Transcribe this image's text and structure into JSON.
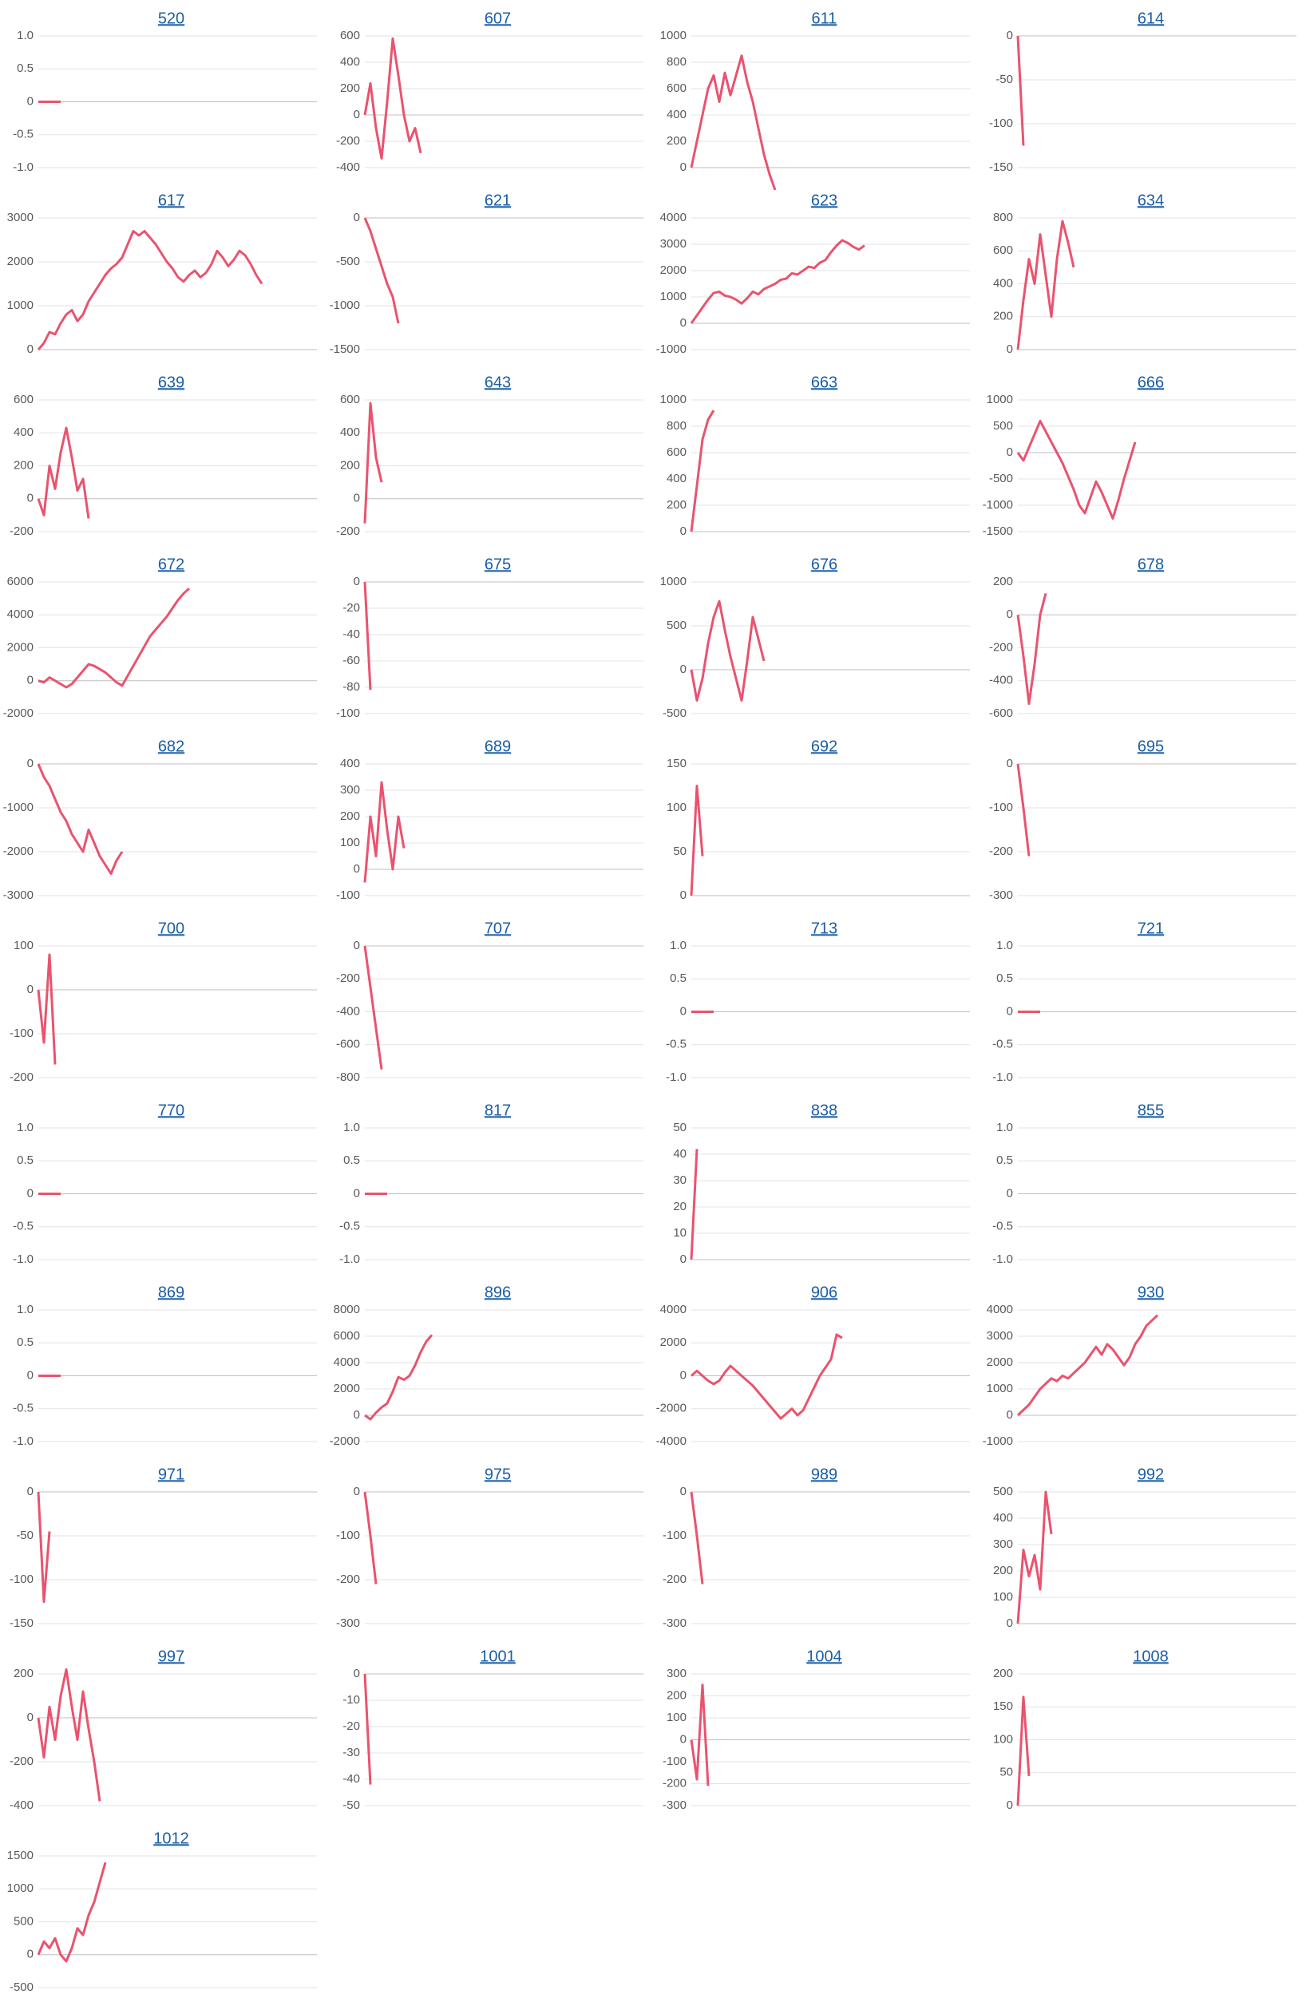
{
  "chart_data": [
    {
      "type": "line",
      "title": "520",
      "color": "#e9536f",
      "ylim": [
        -1,
        1
      ],
      "yticks": [
        {
          "value": 1,
          "label": "1.0"
        },
        0.5,
        0,
        -0.5,
        {
          "value": -1,
          "label": "-1.0"
        }
      ],
      "values": [
        0,
        0,
        0,
        0,
        0
      ]
    },
    {
      "type": "line",
      "title": "607",
      "color": "#e9536f",
      "ylim": [
        -400,
        600
      ],
      "yticks": [
        600,
        400,
        200,
        0,
        -200,
        -400
      ],
      "values": [
        0,
        240,
        -100,
        -330,
        100,
        580,
        300,
        0,
        -200,
        -100,
        -290
      ]
    },
    {
      "type": "line",
      "title": "611",
      "color": "#e9536f",
      "ylim": [
        0,
        1000
      ],
      "yticks": [
        1000,
        800,
        600,
        400,
        200,
        0
      ],
      "values": [
        0,
        200,
        400,
        600,
        700,
        500,
        720,
        550,
        700,
        850,
        650,
        500,
        300,
        100,
        -50,
        -170
      ]
    },
    {
      "type": "line",
      "title": "614",
      "color": "#e9536f",
      "ylim": [
        -150,
        0
      ],
      "yticks": [
        0,
        -50,
        -100,
        -150
      ],
      "values": [
        0,
        -125
      ]
    },
    {
      "type": "line",
      "title": "617",
      "color": "#e9536f",
      "ylim": [
        0,
        3000
      ],
      "yticks": [
        3000,
        2000,
        1000,
        0
      ],
      "values": [
        0,
        150,
        400,
        350,
        600,
        800,
        900,
        650,
        800,
        1100,
        1300,
        1500,
        1700,
        1850,
        1950,
        2100,
        2400,
        2700,
        2600,
        2700,
        2550,
        2400,
        2200,
        2000,
        1850,
        1650,
        1550,
        1700,
        1800,
        1650,
        1750,
        1950,
        2250,
        2100,
        1900,
        2050,
        2250,
        2150,
        1950,
        1700,
        1500
      ]
    },
    {
      "type": "line",
      "title": "621",
      "color": "#e9536f",
      "ylim": [
        -1500,
        0
      ],
      "yticks": [
        0,
        -500,
        -1000,
        -1500
      ],
      "values": [
        0,
        -150,
        -350,
        -550,
        -750,
        -900,
        -1200
      ]
    },
    {
      "type": "line",
      "title": "623",
      "color": "#e9536f",
      "ylim": [
        -1000,
        4000
      ],
      "yticks": [
        4000,
        3000,
        2000,
        1000,
        0,
        -1000
      ],
      "values": [
        0,
        300,
        600,
        900,
        1150,
        1200,
        1050,
        1000,
        900,
        750,
        950,
        1200,
        1100,
        1300,
        1400,
        1500,
        1650,
        1700,
        1900,
        1850,
        2000,
        2150,
        2100,
        2300,
        2400,
        2700,
        2950,
        3150,
        3050,
        2900,
        2800,
        2950
      ]
    },
    {
      "type": "line",
      "title": "634",
      "color": "#e9536f",
      "ylim": [
        0,
        800
      ],
      "yticks": [
        800,
        600,
        400,
        200,
        0
      ],
      "values": [
        0,
        300,
        550,
        400,
        700,
        450,
        200,
        550,
        780,
        650,
        500
      ]
    },
    {
      "type": "line",
      "title": "639",
      "color": "#e9536f",
      "ylim": [
        -200,
        600
      ],
      "yticks": [
        600,
        400,
        200,
        0,
        -200
      ],
      "values": [
        0,
        -100,
        200,
        60,
        280,
        430,
        250,
        50,
        120,
        -120
      ]
    },
    {
      "type": "line",
      "title": "643",
      "color": "#e9536f",
      "ylim": [
        -200,
        600
      ],
      "yticks": [
        600,
        400,
        200,
        0,
        -200
      ],
      "values": [
        -150,
        580,
        250,
        100
      ]
    },
    {
      "type": "line",
      "title": "663",
      "color": "#e9536f",
      "ylim": [
        0,
        1000
      ],
      "yticks": [
        1000,
        800,
        600,
        400,
        200,
        0
      ],
      "values": [
        0,
        350,
        700,
        850,
        920
      ]
    },
    {
      "type": "line",
      "title": "666",
      "color": "#e9536f",
      "ylim": [
        -1500,
        1000
      ],
      "yticks": [
        1000,
        500,
        0,
        -500,
        -1000,
        -1500
      ],
      "values": [
        0,
        -150,
        100,
        350,
        600,
        400,
        200,
        0,
        -200,
        -450,
        -700,
        -1000,
        -1150,
        -850,
        -550,
        -750,
        -1000,
        -1250,
        -900,
        -500,
        -150,
        200
      ]
    },
    {
      "type": "line",
      "title": "672",
      "color": "#e9536f",
      "ylim": [
        -2000,
        6000
      ],
      "yticks": [
        6000,
        4000,
        2000,
        0,
        -2000
      ],
      "values": [
        0,
        -100,
        200,
        0,
        -200,
        -400,
        -200,
        200,
        600,
        1000,
        900,
        700,
        500,
        200,
        -100,
        -300,
        300,
        900,
        1500,
        2100,
        2700,
        3100,
        3500,
        3900,
        4400,
        4900,
        5300,
        5600
      ]
    },
    {
      "type": "line",
      "title": "675",
      "color": "#e9536f",
      "ylim": [
        -100,
        0
      ],
      "yticks": [
        0,
        -20,
        -40,
        -60,
        -80,
        -100
      ],
      "values": [
        0,
        -82
      ]
    },
    {
      "type": "line",
      "title": "676",
      "color": "#e9536f",
      "ylim": [
        -500,
        1000
      ],
      "yticks": [
        1000,
        500,
        0,
        -500
      ],
      "values": [
        0,
        -350,
        -100,
        300,
        600,
        780,
        450,
        150,
        -100,
        -350,
        100,
        600,
        350,
        100
      ]
    },
    {
      "type": "line",
      "title": "678",
      "color": "#e9536f",
      "ylim": [
        -600,
        200
      ],
      "yticks": [
        200,
        0,
        -200,
        -400,
        -600
      ],
      "values": [
        0,
        -250,
        -540,
        -300,
        0,
        130
      ]
    },
    {
      "type": "line",
      "title": "682",
      "color": "#e9536f",
      "ylim": [
        -3000,
        0
      ],
      "yticks": [
        0,
        -1000,
        -2000,
        -3000
      ],
      "values": [
        0,
        -300,
        -500,
        -800,
        -1100,
        -1300,
        -1600,
        -1800,
        -2000,
        -1500,
        -1800,
        -2100,
        -2300,
        -2500,
        -2200,
        -2000
      ]
    },
    {
      "type": "line",
      "title": "689",
      "color": "#e9536f",
      "ylim": [
        -100,
        400
      ],
      "yticks": [
        400,
        300,
        200,
        100,
        0,
        -100
      ],
      "values": [
        -50,
        200,
        50,
        330,
        150,
        0,
        200,
        80
      ]
    },
    {
      "type": "line",
      "title": "692",
      "color": "#e9536f",
      "ylim": [
        0,
        150
      ],
      "yticks": [
        150,
        100,
        50,
        0
      ],
      "values": [
        0,
        125,
        45
      ]
    },
    {
      "type": "line",
      "title": "695",
      "color": "#e9536f",
      "ylim": [
        -300,
        0
      ],
      "yticks": [
        0,
        -100,
        -200,
        -300
      ],
      "values": [
        0,
        -100,
        -210
      ]
    },
    {
      "type": "line",
      "title": "700",
      "color": "#e9536f",
      "ylim": [
        -200,
        100
      ],
      "yticks": [
        100,
        0,
        -100,
        -200
      ],
      "values": [
        0,
        -120,
        80,
        -170
      ]
    },
    {
      "type": "line",
      "title": "707",
      "color": "#e9536f",
      "ylim": [
        -800,
        0
      ],
      "yticks": [
        0,
        -200,
        -400,
        -600,
        -800
      ],
      "values": [
        0,
        -250,
        -500,
        -750
      ]
    },
    {
      "type": "line",
      "title": "713",
      "color": "#e9536f",
      "ylim": [
        -1,
        1
      ],
      "yticks": [
        {
          "value": 1,
          "label": "1.0"
        },
        0.5,
        0,
        -0.5,
        {
          "value": -1,
          "label": "-1.0"
        }
      ],
      "values": [
        0,
        0,
        0,
        0,
        0
      ]
    },
    {
      "type": "line",
      "title": "721",
      "color": "#e9536f",
      "ylim": [
        -1,
        1
      ],
      "yticks": [
        {
          "value": 1,
          "label": "1.0"
        },
        0.5,
        0,
        -0.5,
        {
          "value": -1,
          "label": "-1.0"
        }
      ],
      "values": [
        0,
        0,
        0,
        0,
        0
      ]
    },
    {
      "type": "line",
      "title": "770",
      "color": "#e9536f",
      "ylim": [
        -1,
        1
      ],
      "yticks": [
        {
          "value": 1,
          "label": "1.0"
        },
        0.5,
        0,
        -0.5,
        {
          "value": -1,
          "label": "-1.0"
        }
      ],
      "values": [
        0,
        0,
        0,
        0,
        0
      ]
    },
    {
      "type": "line",
      "title": "817",
      "color": "#e9536f",
      "ylim": [
        -1,
        1
      ],
      "yticks": [
        {
          "value": 1,
          "label": "1.0"
        },
        0.5,
        0,
        -0.5,
        {
          "value": -1,
          "label": "-1.0"
        }
      ],
      "values": [
        0,
        0,
        0,
        0,
        0
      ]
    },
    {
      "type": "line",
      "title": "838",
      "color": "#e9536f",
      "ylim": [
        0,
        50
      ],
      "yticks": [
        50,
        40,
        30,
        20,
        10,
        0
      ],
      "values": [
        0,
        42
      ]
    },
    {
      "type": "line",
      "title": "855",
      "color": "#e9536f",
      "ylim": [
        -1,
        1
      ],
      "yticks": [
        {
          "value": 1,
          "label": "1.0"
        },
        0.5,
        0,
        -0.5,
        {
          "value": -1,
          "label": "-1.0"
        }
      ],
      "values": []
    },
    {
      "type": "line",
      "title": "869",
      "color": "#e9536f",
      "ylim": [
        -1,
        1
      ],
      "yticks": [
        {
          "value": 1,
          "label": "1.0"
        },
        0.5,
        0,
        -0.5,
        {
          "value": -1,
          "label": "-1.0"
        }
      ],
      "values": [
        0,
        0,
        0,
        0,
        0
      ]
    },
    {
      "type": "line",
      "title": "896",
      "color": "#e9536f",
      "ylim": [
        -2000,
        8000
      ],
      "yticks": [
        8000,
        6000,
        4000,
        2000,
        0,
        -2000
      ],
      "values": [
        0,
        -300,
        200,
        600,
        900,
        1800,
        2900,
        2700,
        3000,
        3800,
        4800,
        5600,
        6100
      ]
    },
    {
      "type": "line",
      "title": "906",
      "color": "#e9536f",
      "ylim": [
        -4000,
        4000
      ],
      "yticks": [
        4000,
        2000,
        0,
        -2000,
        -4000
      ],
      "values": [
        0,
        300,
        0,
        -300,
        -500,
        -300,
        200,
        600,
        300,
        0,
        -300,
        -600,
        -1000,
        -1400,
        -1800,
        -2200,
        -2600,
        -2300,
        -2000,
        -2400,
        -2100,
        -1400,
        -700,
        0,
        500,
        1000,
        2500,
        2300
      ]
    },
    {
      "type": "line",
      "title": "930",
      "color": "#e9536f",
      "ylim": [
        -1000,
        4000
      ],
      "yticks": [
        4000,
        3000,
        2000,
        1000,
        0,
        -1000
      ],
      "values": [
        0,
        200,
        400,
        700,
        1000,
        1200,
        1400,
        1300,
        1500,
        1400,
        1600,
        1800,
        2000,
        2300,
        2600,
        2300,
        2700,
        2500,
        2200,
        1900,
        2200,
        2700,
        3000,
        3400,
        3600,
        3800
      ]
    },
    {
      "type": "line",
      "title": "971",
      "color": "#e9536f",
      "ylim": [
        -150,
        0
      ],
      "yticks": [
        0,
        -50,
        -100,
        -150
      ],
      "values": [
        0,
        -125,
        -45
      ]
    },
    {
      "type": "line",
      "title": "975",
      "color": "#e9536f",
      "ylim": [
        -300,
        0
      ],
      "yticks": [
        0,
        -100,
        -200,
        -300
      ],
      "values": [
        0,
        -100,
        -210
      ]
    },
    {
      "type": "line",
      "title": "989",
      "color": "#e9536f",
      "ylim": [
        -300,
        0
      ],
      "yticks": [
        0,
        -100,
        -200,
        -300
      ],
      "values": [
        0,
        -100,
        -210
      ]
    },
    {
      "type": "line",
      "title": "992",
      "color": "#e9536f",
      "ylim": [
        0,
        500
      ],
      "yticks": [
        500,
        400,
        300,
        200,
        100,
        0
      ],
      "values": [
        0,
        280,
        180,
        260,
        130,
        500,
        340
      ]
    },
    {
      "type": "line",
      "title": "997",
      "color": "#e9536f",
      "ylim": [
        -400,
        200
      ],
      "yticks": [
        200,
        0,
        -200,
        -400
      ],
      "values": [
        0,
        -180,
        50,
        -100,
        100,
        220,
        50,
        -100,
        120,
        -50,
        -200,
        -380
      ]
    },
    {
      "type": "line",
      "title": "1001",
      "color": "#e9536f",
      "ylim": [
        -50,
        0
      ],
      "yticks": [
        0,
        -10,
        -20,
        -30,
        -40,
        -50
      ],
      "values": [
        0,
        -42
      ]
    },
    {
      "type": "line",
      "title": "1004",
      "color": "#e9536f",
      "ylim": [
        -300,
        300
      ],
      "yticks": [
        300,
        200,
        100,
        0,
        -100,
        -200,
        -300
      ],
      "values": [
        0,
        -180,
        250,
        -210
      ]
    },
    {
      "type": "line",
      "title": "1008",
      "color": "#e9536f",
      "ylim": [
        0,
        200
      ],
      "yticks": [
        200,
        150,
        100,
        50,
        0
      ],
      "values": [
        0,
        165,
        45
      ]
    },
    {
      "type": "line",
      "title": "1012",
      "color": "#e9536f",
      "ylim": [
        -500,
        1500
      ],
      "yticks": [
        1500,
        1000,
        500,
        0,
        -500
      ],
      "values": [
        0,
        200,
        100,
        250,
        0,
        -100,
        100,
        400,
        300,
        600,
        800,
        1100,
        1400
      ]
    }
  ]
}
